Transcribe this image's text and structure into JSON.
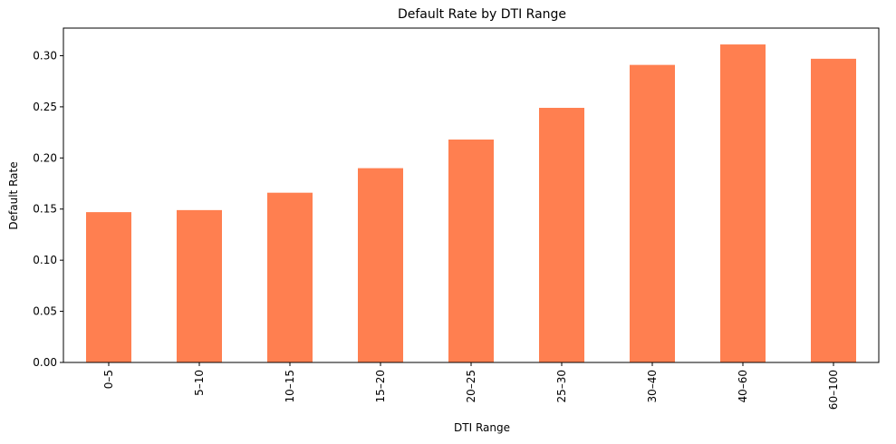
{
  "chart_data": {
    "type": "bar",
    "title": "Default Rate by DTI Range",
    "xlabel": "DTI Range",
    "ylabel": "Default Rate",
    "categories": [
      "0–5",
      "5–10",
      "10–15",
      "15–20",
      "20–25",
      "25–30",
      "30–40",
      "40–60",
      "60–100"
    ],
    "values": [
      0.147,
      0.149,
      0.166,
      0.19,
      0.218,
      0.249,
      0.291,
      0.311,
      0.297
    ],
    "ylim": [
      0,
      0.327
    ],
    "yticks": [
      "0.00",
      "0.05",
      "0.10",
      "0.15",
      "0.20",
      "0.25",
      "0.30"
    ],
    "bar_color": "#ff7f50",
    "grid": false,
    "legend": "none"
  }
}
